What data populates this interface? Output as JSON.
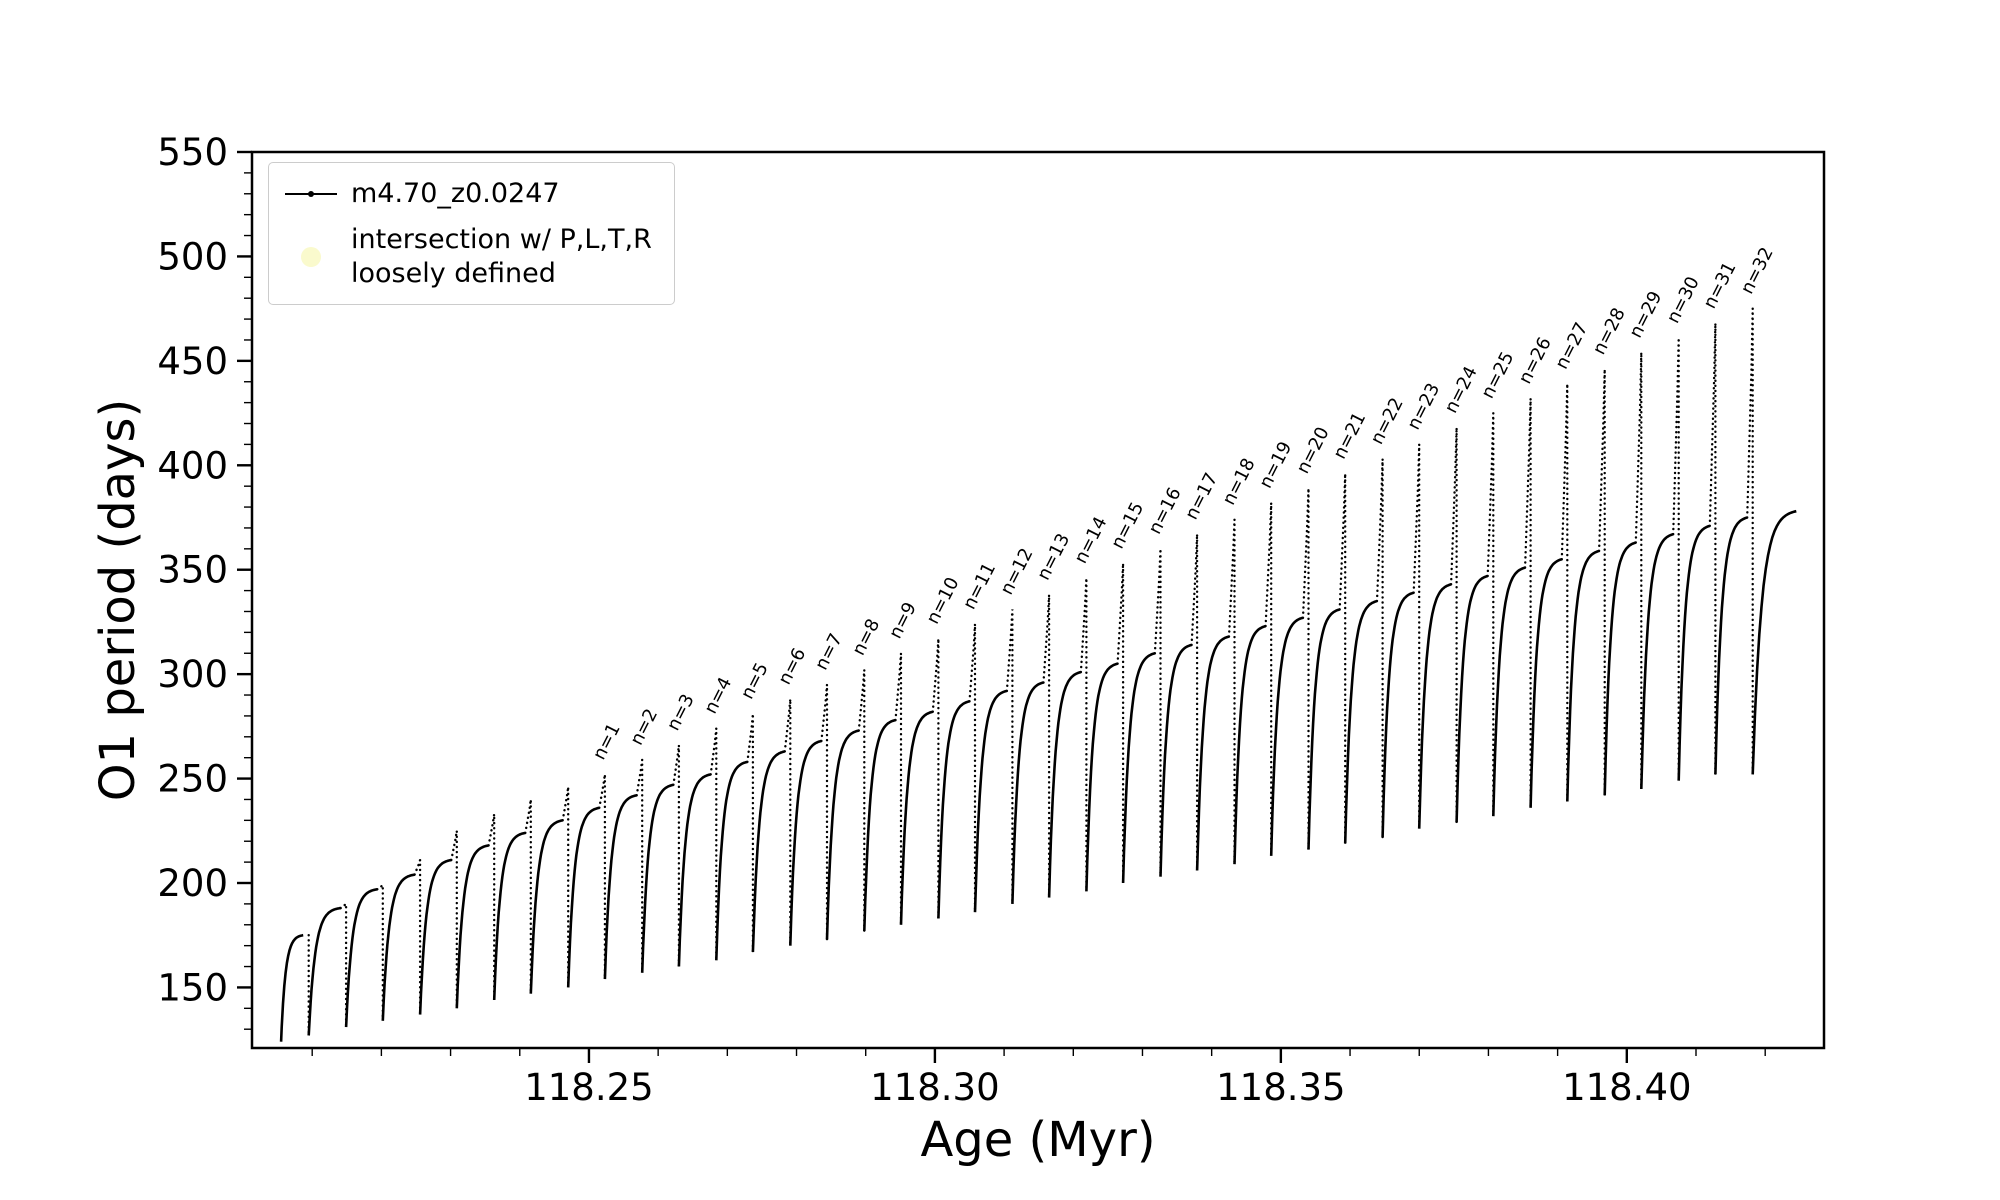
{
  "figure": {
    "background": "#ffffff",
    "line_color": "#000000"
  },
  "chart_data": {
    "type": "line",
    "title": "",
    "xlabel": "Age (Myr)",
    "ylabel": "O1 period (days)",
    "xlim": [
      118.2013,
      118.4285
    ],
    "ylim": [
      121,
      550
    ],
    "x_major_ticks": [
      118.25,
      118.3,
      118.35,
      118.4
    ],
    "x_tick_labels": [
      "118.25",
      "118.30",
      "118.35",
      "118.40"
    ],
    "x_minor_step": 0.01,
    "y_major_ticks": [
      150,
      200,
      250,
      300,
      350,
      400,
      450,
      500,
      550
    ],
    "y_minor_step": 10,
    "grid": false,
    "legend": {
      "position": "upper left",
      "entries": [
        {
          "label": "m4.70_z0.0247",
          "marker": "line-dot",
          "color": "#000000"
        },
        {
          "label_line1": "intersection w/ P,L,T,R",
          "label_line2": "loosely defined",
          "marker": "circle",
          "color": "#f9f9c4"
        }
      ]
    },
    "series_name": "m4.70_z0.0247",
    "cycle_width": 0.00535,
    "cycles": [
      {
        "n": null,
        "x_spike": 118.2095,
        "y_min": 124,
        "y_plateau": 175,
        "y_peak": 175
      },
      {
        "n": null,
        "x_spike": 118.2149,
        "y_min": 127,
        "y_plateau": 188,
        "y_peak": 190
      },
      {
        "n": null,
        "x_spike": 118.2202,
        "y_min": 131,
        "y_plateau": 197,
        "y_peak": 199
      },
      {
        "n": null,
        "x_spike": 118.2256,
        "y_min": 134,
        "y_plateau": 204,
        "y_peak": 211
      },
      {
        "n": null,
        "x_spike": 118.2309,
        "y_min": 137,
        "y_plateau": 211,
        "y_peak": 225
      },
      {
        "n": null,
        "x_spike": 118.2363,
        "y_min": 140,
        "y_plateau": 218,
        "y_peak": 233
      },
      {
        "n": null,
        "x_spike": 118.2416,
        "y_min": 144,
        "y_plateau": 224,
        "y_peak": 240
      },
      {
        "n": null,
        "x_spike": 118.247,
        "y_min": 147,
        "y_plateau": 230,
        "y_peak": 246
      },
      {
        "n": "n=1",
        "x_spike": 118.2523,
        "y_min": 150,
        "y_plateau": 236,
        "y_peak": 252
      },
      {
        "n": "n=2",
        "x_spike": 118.2577,
        "y_min": 154,
        "y_plateau": 242,
        "y_peak": 259
      },
      {
        "n": "n=3",
        "x_spike": 118.263,
        "y_min": 157,
        "y_plateau": 247,
        "y_peak": 266
      },
      {
        "n": "n=4",
        "x_spike": 118.2684,
        "y_min": 160,
        "y_plateau": 252,
        "y_peak": 274
      },
      {
        "n": "n=5",
        "x_spike": 118.2737,
        "y_min": 163,
        "y_plateau": 258,
        "y_peak": 281
      },
      {
        "n": "n=6",
        "x_spike": 118.2791,
        "y_min": 167,
        "y_plateau": 263,
        "y_peak": 288
      },
      {
        "n": "n=7",
        "x_spike": 118.2844,
        "y_min": 170,
        "y_plateau": 268,
        "y_peak": 295
      },
      {
        "n": "n=8",
        "x_spike": 118.2898,
        "y_min": 173,
        "y_plateau": 273,
        "y_peak": 302
      },
      {
        "n": "n=9",
        "x_spike": 118.2951,
        "y_min": 177,
        "y_plateau": 278,
        "y_peak": 310
      },
      {
        "n": "n=10",
        "x_spike": 118.3005,
        "y_min": 180,
        "y_plateau": 282,
        "y_peak": 317
      },
      {
        "n": "n=11",
        "x_spike": 118.3058,
        "y_min": 183,
        "y_plateau": 287,
        "y_peak": 324
      },
      {
        "n": "n=12",
        "x_spike": 118.3112,
        "y_min": 186,
        "y_plateau": 292,
        "y_peak": 331
      },
      {
        "n": "n=13",
        "x_spike": 118.3165,
        "y_min": 190,
        "y_plateau": 296,
        "y_peak": 338
      },
      {
        "n": "n=14",
        "x_spike": 118.3219,
        "y_min": 193,
        "y_plateau": 301,
        "y_peak": 346
      },
      {
        "n": "n=15",
        "x_spike": 118.3272,
        "y_min": 196,
        "y_plateau": 305,
        "y_peak": 353
      },
      {
        "n": "n=16",
        "x_spike": 118.3326,
        "y_min": 200,
        "y_plateau": 310,
        "y_peak": 360
      },
      {
        "n": "n=17",
        "x_spike": 118.3379,
        "y_min": 203,
        "y_plateau": 314,
        "y_peak": 367
      },
      {
        "n": "n=18",
        "x_spike": 118.3433,
        "y_min": 206,
        "y_plateau": 318,
        "y_peak": 374
      },
      {
        "n": "n=19",
        "x_spike": 118.3486,
        "y_min": 209,
        "y_plateau": 323,
        "y_peak": 382
      },
      {
        "n": "n=20",
        "x_spike": 118.354,
        "y_min": 213,
        "y_plateau": 327,
        "y_peak": 389
      },
      {
        "n": "n=21",
        "x_spike": 118.3593,
        "y_min": 216,
        "y_plateau": 331,
        "y_peak": 396
      },
      {
        "n": "n=22",
        "x_spike": 118.3647,
        "y_min": 219,
        "y_plateau": 335,
        "y_peak": 403
      },
      {
        "n": "n=23",
        "x_spike": 118.37,
        "y_min": 222,
        "y_plateau": 339,
        "y_peak": 410
      },
      {
        "n": "n=24",
        "x_spike": 118.3754,
        "y_min": 226,
        "y_plateau": 343,
        "y_peak": 418
      },
      {
        "n": "n=25",
        "x_spike": 118.3807,
        "y_min": 229,
        "y_plateau": 347,
        "y_peak": 425
      },
      {
        "n": "n=26",
        "x_spike": 118.3861,
        "y_min": 232,
        "y_plateau": 351,
        "y_peak": 432
      },
      {
        "n": "n=27",
        "x_spike": 118.3914,
        "y_min": 236,
        "y_plateau": 355,
        "y_peak": 439
      },
      {
        "n": "n=28",
        "x_spike": 118.3968,
        "y_min": 239,
        "y_plateau": 359,
        "y_peak": 446
      },
      {
        "n": "n=29",
        "x_spike": 118.4021,
        "y_min": 242,
        "y_plateau": 363,
        "y_peak": 454
      },
      {
        "n": "n=30",
        "x_spike": 118.4075,
        "y_min": 245,
        "y_plateau": 367,
        "y_peak": 461
      },
      {
        "n": "n=31",
        "x_spike": 118.4128,
        "y_min": 249,
        "y_plateau": 371,
        "y_peak": 468
      },
      {
        "n": "n=32",
        "x_spike": 118.4182,
        "y_min": 252,
        "y_plateau": 375,
        "y_peak": 475
      }
    ],
    "tail": {
      "x_end": 118.4245,
      "y_start": 252,
      "y_end": 378
    }
  }
}
